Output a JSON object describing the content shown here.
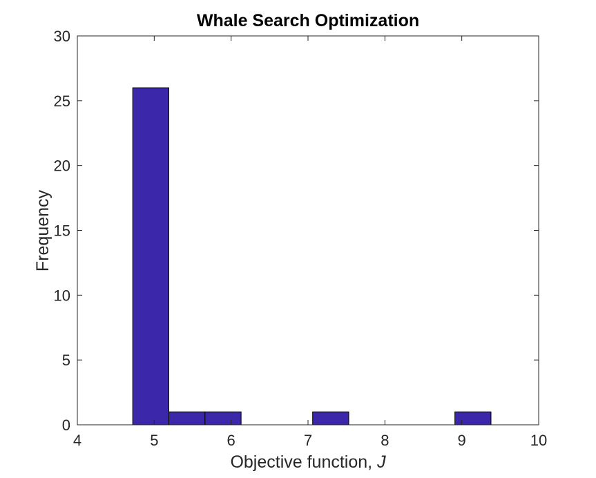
{
  "chart_data": {
    "type": "bar",
    "title": "Whale Search Optimization",
    "xlabel": "Objective function, ",
    "xlabel_italic": "J",
    "ylabel": "Frequency",
    "xlim": [
      4,
      10
    ],
    "ylim": [
      0,
      30
    ],
    "xticks": [
      "4",
      "5",
      "6",
      "7",
      "8",
      "9",
      "10"
    ],
    "yticks": [
      "0",
      "5",
      "10",
      "15",
      "20",
      "25",
      "30"
    ],
    "bins": [
      {
        "x0": 4.72,
        "x1": 5.19,
        "value": 26
      },
      {
        "x0": 5.19,
        "x1": 5.66,
        "value": 1
      },
      {
        "x0": 5.66,
        "x1": 6.13,
        "value": 1
      },
      {
        "x0": 7.06,
        "x1": 7.53,
        "value": 1
      },
      {
        "x0": 8.91,
        "x1": 9.38,
        "value": 1
      }
    ],
    "bar_color": "#3b27a9",
    "bar_edge_color": "#000000",
    "grid": false
  }
}
